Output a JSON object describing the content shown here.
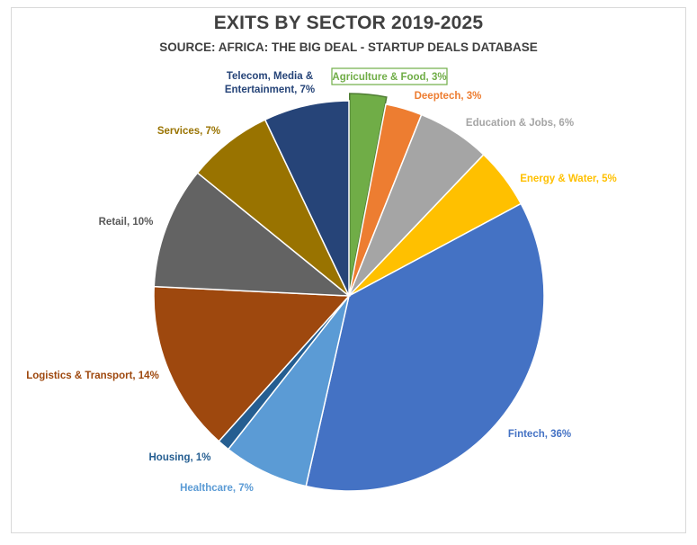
{
  "chart_data": {
    "type": "pie",
    "title": "EXITS BY SECTOR 2019-2025",
    "subtitle": "SOURCE: AFRICA: THE BIG DEAL - STARTUP DEALS DATABASE",
    "slices": [
      {
        "label": "Agriculture & Food",
        "value": 3,
        "display": "Agriculture & Food, 3%",
        "color": "#70ad47",
        "label_color": "#70ad47",
        "exploded": true
      },
      {
        "label": "Deeptech",
        "value": 3,
        "display": "Deeptech, 3%",
        "color": "#ed7d31",
        "label_color": "#ed7d31"
      },
      {
        "label": "Education & Jobs",
        "value": 6,
        "display": "Education & Jobs, 6%",
        "color": "#a5a5a5",
        "label_color": "#a5a5a5"
      },
      {
        "label": "Energy & Water",
        "value": 5,
        "display": "Energy & Water, 5%",
        "color": "#ffc000",
        "label_color": "#ffc000"
      },
      {
        "label": "Fintech",
        "value": 36,
        "display": "Fintech, 36%",
        "color": "#4472c4",
        "label_color": "#4472c4"
      },
      {
        "label": "Healthcare",
        "value": 7,
        "display": "Healthcare, 7%",
        "color": "#5b9bd5",
        "label_color": "#5b9bd5"
      },
      {
        "label": "Housing",
        "value": 1,
        "display": "Housing, 1%",
        "color": "#255e91",
        "label_color": "#255e91"
      },
      {
        "label": "Logistics & Transport",
        "value": 14,
        "display": "Logistics & Transport, 14%",
        "color": "#9e480e",
        "label_color": "#9e480e"
      },
      {
        "label": "Retail",
        "value": 10,
        "display": "Retail, 10%",
        "color": "#636363",
        "label_color": "#595959"
      },
      {
        "label": "Services",
        "value": 7,
        "display": "Services, 7%",
        "color": "#997300",
        "label_color": "#997300"
      },
      {
        "label": "Telecom, Media & Entertainment",
        "value": 7,
        "display": "Telecom, Media & Entertainment, 7%",
        "display_lines": [
          "Telecom, Media &",
          "Entertainment, 7%"
        ],
        "color": "#264478",
        "label_color": "#264478"
      }
    ]
  }
}
